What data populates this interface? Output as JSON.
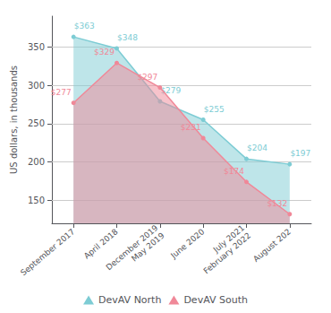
{
  "chart_data": {
    "type": "area",
    "categories": [
      "September 2017",
      "April 2018",
      "December 2019\nMay 2019",
      "June 2020",
      "July 2021\nFebruary 2022",
      "August 202"
    ],
    "ylabel": "US dollars, in thousands",
    "series": [
      {
        "name": "DevAV North",
        "color": "#7DCCD4",
        "values": [
          363,
          348,
          279,
          255,
          204,
          197
        ],
        "value_labels": [
          "$363",
          "$348",
          "$279",
          "$255",
          "$204",
          "$197"
        ]
      },
      {
        "name": "DevAV South",
        "color": "#F08898",
        "values": [
          277,
          329,
          297,
          231,
          174,
          132
        ],
        "value_labels": [
          "$277",
          "$329",
          "$297",
          "$231",
          "$174",
          "$132"
        ]
      }
    ],
    "ylim": [
      120,
      390
    ],
    "yticks": [
      150,
      200,
      250,
      300,
      350
    ],
    "grid": true,
    "legend": "bottom",
    "data_labels": true,
    "marker": "circle"
  }
}
